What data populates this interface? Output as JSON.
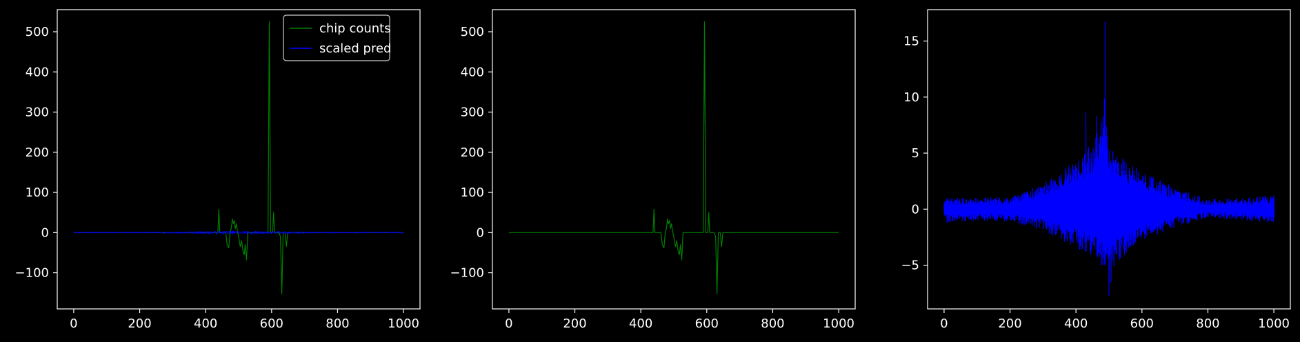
{
  "theme": {
    "background": "#000000",
    "axis_color": "#ffffff",
    "counts_color": "#008000",
    "pred_color": "#0000ff"
  },
  "chart_data": [
    {
      "type": "line",
      "title": "",
      "xlabel": "",
      "ylabel": "",
      "xlim": [
        -50,
        1050
      ],
      "ylim": [
        -190,
        555
      ],
      "xticks": [
        0,
        200,
        400,
        600,
        800,
        1000
      ],
      "yticks": [
        -100,
        0,
        100,
        200,
        300,
        400,
        500
      ],
      "legend": {
        "location": "upper right",
        "entries": [
          "chip counts",
          "scaled pred"
        ]
      },
      "series": [
        {
          "name": "chip counts",
          "color": "#008000",
          "x_range": [
            0,
            1000
          ],
          "baseline": 0,
          "spikes": [
            [
              437,
              0
            ],
            [
              440,
              58
            ],
            [
              443,
              0
            ],
            [
              461,
              0
            ],
            [
              465,
              -30
            ],
            [
              470,
              -38
            ],
            [
              474,
              0
            ],
            [
              478,
              12
            ],
            [
              481,
              34
            ],
            [
              484,
              22
            ],
            [
              487,
              30
            ],
            [
              490,
              10
            ],
            [
              493,
              22
            ],
            [
              496,
              5
            ],
            [
              500,
              -10
            ],
            [
              505,
              -35
            ],
            [
              509,
              -20
            ],
            [
              513,
              -45
            ],
            [
              517,
              -55
            ],
            [
              520,
              -30
            ],
            [
              524,
              -68
            ],
            [
              528,
              0
            ],
            [
              589,
              0
            ],
            [
              593,
              525
            ],
            [
              597,
              0
            ],
            [
              603,
              0
            ],
            [
              606,
              50
            ],
            [
              609,
              0
            ],
            [
              622,
              0
            ],
            [
              627,
              -10
            ],
            [
              631,
              -152
            ],
            [
              635,
              0
            ],
            [
              641,
              0
            ],
            [
              645,
              -35
            ],
            [
              649,
              0
            ]
          ]
        },
        {
          "name": "scaled pred",
          "color": "#0000ff",
          "x_range": [
            0,
            1000
          ],
          "amplitude_scale": 0.8
        }
      ]
    },
    {
      "type": "line",
      "title": "",
      "xlabel": "",
      "ylabel": "",
      "xlim": [
        -50,
        1050
      ],
      "ylim": [
        -190,
        555
      ],
      "xticks": [
        0,
        200,
        400,
        600,
        800,
        1000
      ],
      "yticks": [
        -100,
        0,
        100,
        200,
        300,
        400,
        500
      ],
      "series": [
        {
          "color": "#008000",
          "x_range": [
            0,
            1000
          ],
          "baseline": 0,
          "spikes": [
            [
              437,
              0
            ],
            [
              440,
              58
            ],
            [
              443,
              0
            ],
            [
              461,
              0
            ],
            [
              465,
              -30
            ],
            [
              470,
              -38
            ],
            [
              474,
              0
            ],
            [
              478,
              12
            ],
            [
              481,
              34
            ],
            [
              484,
              22
            ],
            [
              487,
              30
            ],
            [
              490,
              10
            ],
            [
              493,
              22
            ],
            [
              496,
              5
            ],
            [
              500,
              -10
            ],
            [
              505,
              -35
            ],
            [
              509,
              -20
            ],
            [
              513,
              -45
            ],
            [
              517,
              -55
            ],
            [
              520,
              -30
            ],
            [
              524,
              -68
            ],
            [
              528,
              0
            ],
            [
              589,
              0
            ],
            [
              593,
              525
            ],
            [
              597,
              0
            ],
            [
              603,
              0
            ],
            [
              606,
              50
            ],
            [
              609,
              0
            ],
            [
              622,
              0
            ],
            [
              627,
              -10
            ],
            [
              631,
              -152
            ],
            [
              635,
              0
            ],
            [
              641,
              0
            ],
            [
              645,
              -35
            ],
            [
              649,
              0
            ]
          ]
        }
      ]
    },
    {
      "type": "line",
      "title": "",
      "xlabel": "",
      "ylabel": "",
      "xlim": [
        -50,
        1050
      ],
      "ylim": [
        -8.9,
        17.8
      ],
      "xticks": [
        0,
        200,
        400,
        600,
        800,
        1000
      ],
      "yticks": [
        -5,
        0,
        5,
        10,
        15
      ],
      "series": [
        {
          "color": "#0000ff",
          "x_range": [
            0,
            1000
          ],
          "upper_envelope": [
            [
              0,
              0.6
            ],
            [
              100,
              0.6
            ],
            [
              200,
              0.7
            ],
            [
              300,
              1.8
            ],
            [
              400,
              4.0
            ],
            [
              450,
              5.5
            ],
            [
              490,
              9.0
            ],
            [
              500,
              5.0
            ],
            [
              550,
              4.0
            ],
            [
              600,
              3.0
            ],
            [
              700,
              1.5
            ],
            [
              800,
              0.5
            ],
            [
              900,
              0.6
            ],
            [
              1000,
              0.8
            ]
          ],
          "lower_envelope": [
            [
              0,
              -0.8
            ],
            [
              100,
              -0.6
            ],
            [
              200,
              -0.7
            ],
            [
              300,
              -1.5
            ],
            [
              400,
              -3.0
            ],
            [
              450,
              -4.0
            ],
            [
              500,
              -5.5
            ],
            [
              550,
              -3.5
            ],
            [
              600,
              -2.5
            ],
            [
              700,
              -1.2
            ],
            [
              800,
              -0.3
            ],
            [
              900,
              -0.6
            ],
            [
              1000,
              -0.8
            ]
          ],
          "peaks": [
            [
              488,
              16.7
            ],
            [
              486,
              9.8
            ],
            [
              430,
              8.6
            ],
            [
              462,
              8.3
            ],
            [
              500,
              -7.7
            ],
            [
              506,
              -6.5
            ]
          ]
        }
      ]
    }
  ]
}
